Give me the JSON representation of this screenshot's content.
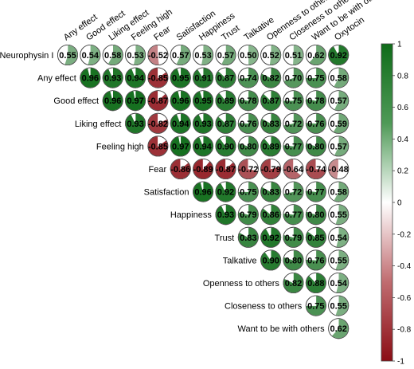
{
  "chart_data": {
    "type": "heatmap",
    "subtype": "correlation-pie-matrix",
    "title": "",
    "column_labels": [
      "Any effect",
      "Good effect",
      "Liking effect",
      "Feeling high",
      "Fear",
      "Satisfaction",
      "Happiness",
      "Trust",
      "Talkative",
      "Openness to others",
      "Closeness to others",
      "Want to be with others",
      "Oxytocin"
    ],
    "rows": [
      {
        "label": "Neurophysin I",
        "values": [
          0.55,
          0.54,
          0.58,
          0.53,
          -0.52,
          0.57,
          0.53,
          0.57,
          0.5,
          0.52,
          0.51,
          0.62,
          0.92
        ]
      },
      {
        "label": "Any effect",
        "values": [
          0.96,
          0.93,
          0.94,
          -0.85,
          0.95,
          0.91,
          0.87,
          0.74,
          0.82,
          0.7,
          0.75,
          0.58
        ]
      },
      {
        "label": "Good effect",
        "values": [
          0.96,
          0.97,
          -0.87,
          0.96,
          0.95,
          0.89,
          0.78,
          0.87,
          0.75,
          0.78,
          0.57
        ]
      },
      {
        "label": "Liking effect",
        "values": [
          0.93,
          -0.82,
          0.94,
          0.93,
          0.87,
          0.76,
          0.83,
          0.72,
          0.76,
          0.59
        ]
      },
      {
        "label": "Feeling high",
        "values": [
          -0.85,
          0.97,
          0.94,
          0.9,
          0.8,
          0.89,
          0.77,
          0.8,
          0.57
        ]
      },
      {
        "label": "Fear",
        "values": [
          -0.86,
          -0.89,
          -0.87,
          -0.72,
          -0.79,
          -0.64,
          -0.74,
          -0.48
        ]
      },
      {
        "label": "Satisfaction",
        "values": [
          0.96,
          0.92,
          0.75,
          0.83,
          0.72,
          0.77,
          0.58
        ]
      },
      {
        "label": "Happiness",
        "values": [
          0.93,
          0.79,
          0.86,
          0.77,
          0.8,
          0.55
        ]
      },
      {
        "label": "Trust",
        "values": [
          0.83,
          0.92,
          0.79,
          0.85,
          0.54
        ]
      },
      {
        "label": "Talkative",
        "values": [
          0.9,
          0.8,
          0.76,
          0.55
        ]
      },
      {
        "label": "Openness to others",
        "values": [
          0.82,
          0.88,
          0.54
        ]
      },
      {
        "label": "Closeness to others",
        "values": [
          0.75,
          0.55
        ]
      },
      {
        "label": "Want to be with others",
        "values": [
          0.62
        ]
      }
    ],
    "colorbar": {
      "range": [
        -1,
        1
      ],
      "ticks": [
        "1",
        "0.8",
        "0.6",
        "0.4",
        "0.2",
        "0",
        "-0.2",
        "-0.4",
        "-0.6",
        "-0.8",
        "-1"
      ],
      "colors": {
        "negative": "#67001f",
        "zero": "#ffffff",
        "positive": "#053061"
      }
    },
    "palette": {
      "neg_end": "#8b0d14",
      "zero": "#ffffff",
      "pos_end": "#0f6c19"
    }
  }
}
